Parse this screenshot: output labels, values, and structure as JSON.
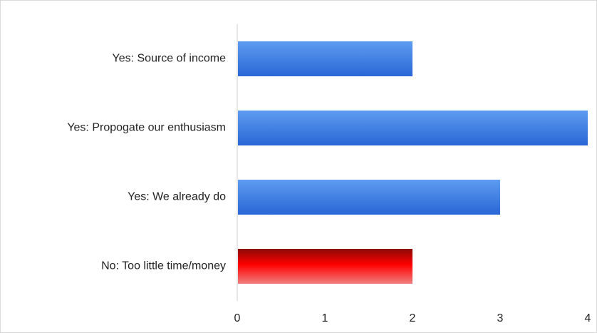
{
  "chart_data": {
    "type": "bar",
    "orientation": "horizontal",
    "title": "",
    "xlabel": "",
    "ylabel": "",
    "categories": [
      "Yes: Source of income",
      "Yes: Propogate our enthusiasm",
      "Yes: We already do",
      "No: Too little time/money"
    ],
    "values": [
      2,
      4,
      3,
      2
    ],
    "bar_colors": [
      "#3a7be0",
      "#3a7be0",
      "#3a7be0",
      "#e00000"
    ],
    "xlim": [
      0,
      4
    ],
    "xticks": [
      "0",
      "1",
      "2",
      "3",
      "4"
    ],
    "grid": false,
    "legend": "none"
  }
}
